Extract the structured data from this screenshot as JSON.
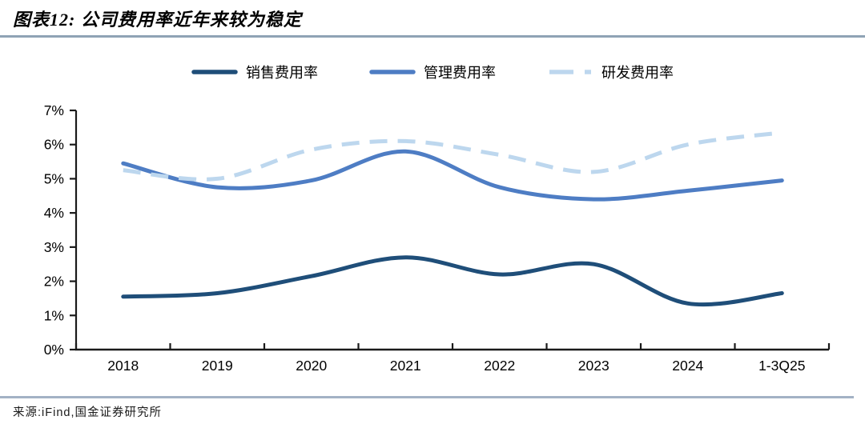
{
  "header": {
    "title": "图表12: 公司费用率近年来较为稳定"
  },
  "chart_data": {
    "type": "line",
    "title": "图表12: 公司费用率近年来较为稳定",
    "categories": [
      "2018",
      "2019",
      "2020",
      "2021",
      "2022",
      "2023",
      "2024",
      "1-3Q25"
    ],
    "series": [
      {
        "name": "销售费用率",
        "color": "#1F4E79",
        "dash": false,
        "values": [
          1.55,
          1.65,
          2.15,
          2.7,
          2.2,
          2.5,
          1.35,
          1.65
        ]
      },
      {
        "name": "管理费用率",
        "color": "#4E7DC4",
        "dash": false,
        "values": [
          5.45,
          4.75,
          4.95,
          5.8,
          4.75,
          4.4,
          4.65,
          4.95
        ]
      },
      {
        "name": "研发费用率",
        "color": "#BDD7EE",
        "dash": true,
        "values": [
          5.25,
          5.0,
          5.85,
          6.1,
          5.7,
          5.2,
          6.0,
          6.35
        ]
      }
    ],
    "ylim": [
      0,
      7
    ],
    "y_tick_labels": [
      "0%",
      "1%",
      "2%",
      "3%",
      "4%",
      "5%",
      "6%",
      "7%"
    ],
    "xlabel": "",
    "ylabel": "",
    "grid": false,
    "smooth": true,
    "legend_position": "top"
  },
  "source": {
    "label": "来源:iFind,国金证券研究所"
  },
  "colors": {
    "background": "#FFFFFF",
    "axis": "#1A1A1A",
    "text": "#000000",
    "title_rule": "#8FA3B5",
    "bottom_rule": "#A3B2C5"
  }
}
